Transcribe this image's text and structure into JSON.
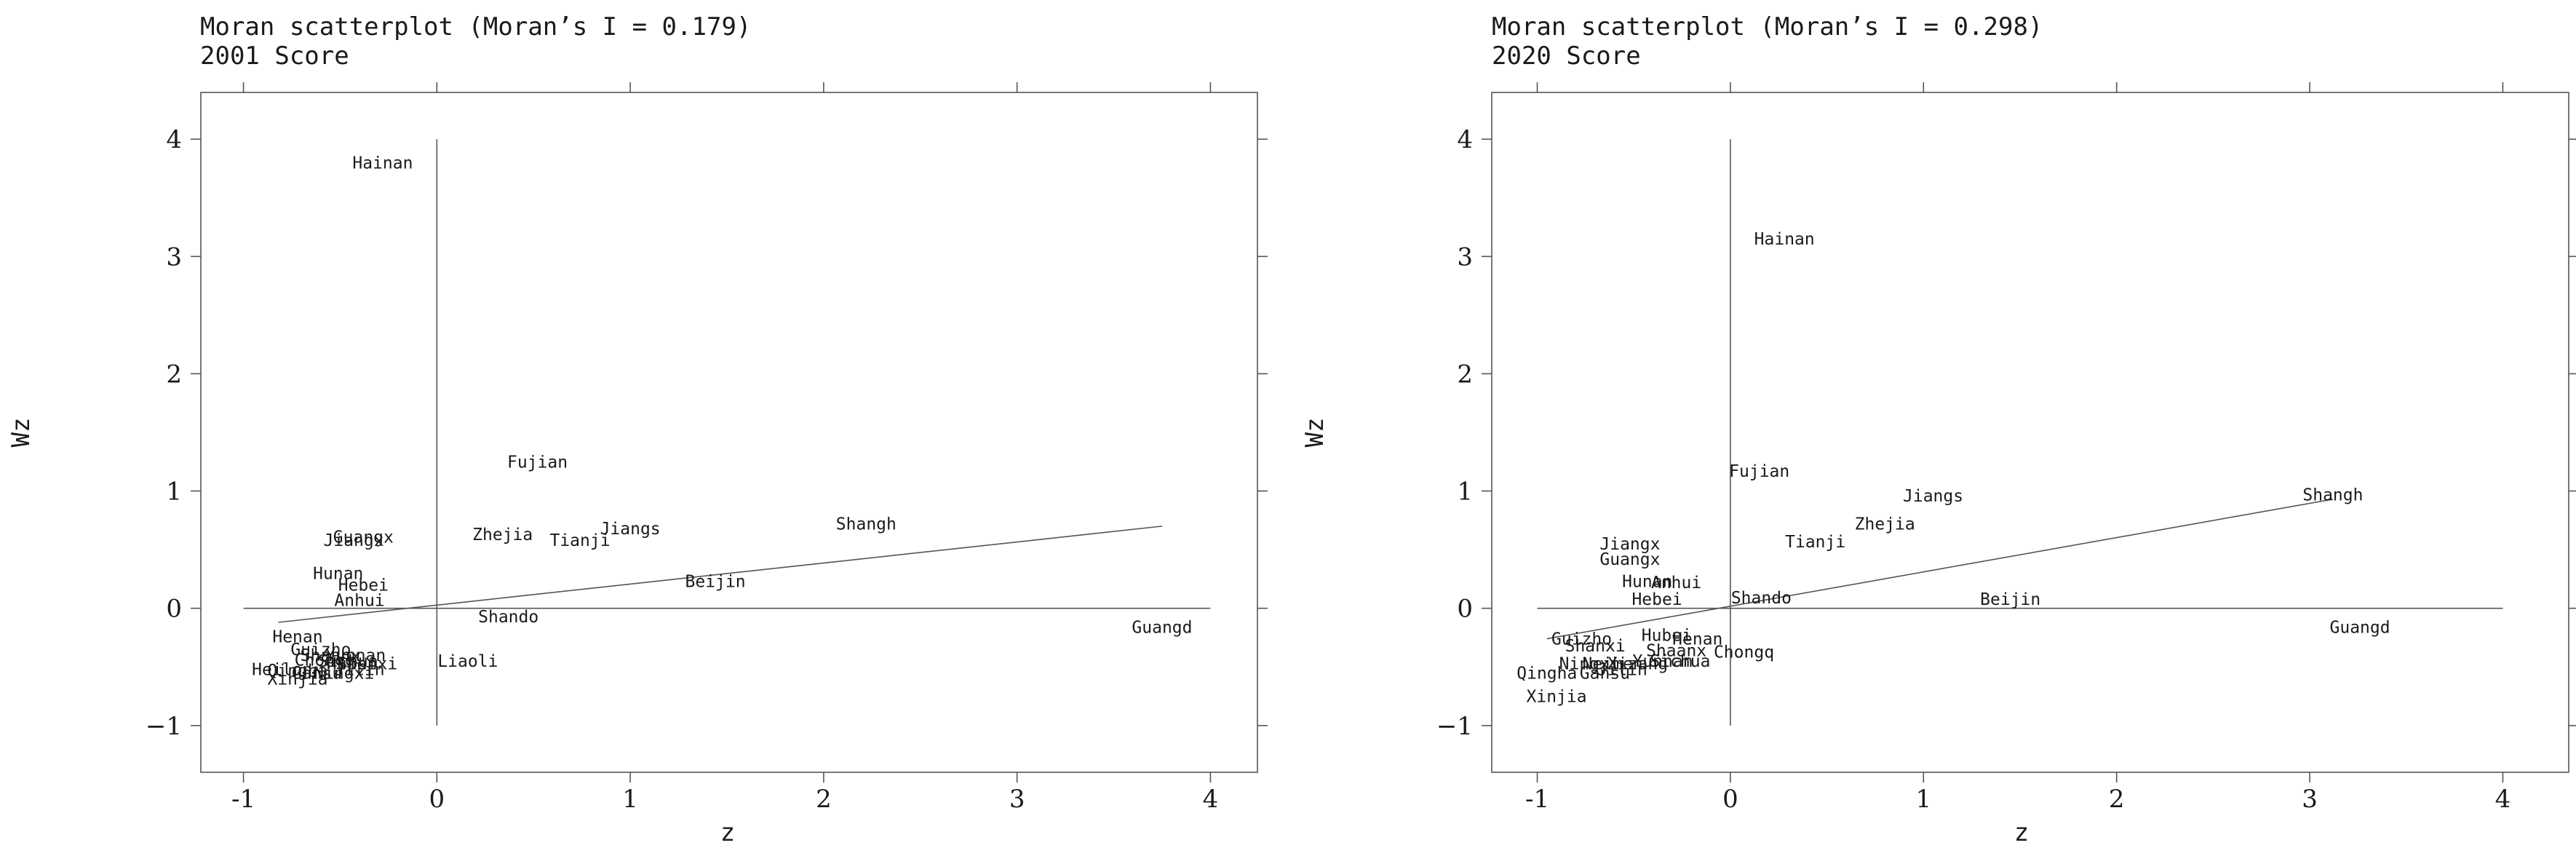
{
  "chart_data": [
    {
      "type": "scatter",
      "title": "Moran scatterplot (Moran’s I = 0.179)",
      "subtitle": "2001 Score",
      "xlabel": "z",
      "ylabel": "Wz",
      "xlim": [
        -1.1,
        4.1
      ],
      "ylim": [
        -1.2,
        4.2
      ],
      "xticks": [
        -1,
        0,
        1,
        2,
        3,
        4
      ],
      "yticks": [
        -1,
        0,
        1,
        2,
        3,
        4
      ],
      "fit_line": {
        "x": [
          -0.82,
          3.75
        ],
        "y": [
          -0.12,
          0.7
        ]
      },
      "points": [
        {
          "label": "Hainan",
          "x": -0.28,
          "y": 3.8
        },
        {
          "label": "Fujian",
          "x": 0.52,
          "y": 1.25
        },
        {
          "label": "Jiangs",
          "x": 1.0,
          "y": 0.68
        },
        {
          "label": "Zhejia",
          "x": 0.34,
          "y": 0.63
        },
        {
          "label": "Tianji",
          "x": 0.74,
          "y": 0.58
        },
        {
          "label": "Shangh",
          "x": 2.22,
          "y": 0.72
        },
        {
          "label": "Guangx",
          "x": -0.38,
          "y": 0.61
        },
        {
          "label": "Jiangx",
          "x": -0.43,
          "y": 0.58
        },
        {
          "label": "Hunan",
          "x": -0.51,
          "y": 0.3
        },
        {
          "label": "Hebei",
          "x": -0.38,
          "y": 0.2
        },
        {
          "label": "Anhui",
          "x": -0.4,
          "y": 0.07
        },
        {
          "label": "Beijin",
          "x": 1.44,
          "y": 0.23
        },
        {
          "label": "Shando",
          "x": 0.37,
          "y": -0.07
        },
        {
          "label": "Guangd",
          "x": 3.75,
          "y": -0.16
        },
        {
          "label": "Liaoli",
          "x": 0.16,
          "y": -0.45
        },
        {
          "label": "Henan",
          "x": -0.72,
          "y": -0.24
        },
        {
          "label": "Guizho",
          "x": -0.6,
          "y": -0.35
        },
        {
          "label": "Shaanx",
          "x": -0.55,
          "y": -0.4
        },
        {
          "label": "Yunnan",
          "x": -0.42,
          "y": -0.4
        },
        {
          "label": "Chongq",
          "x": -0.58,
          "y": -0.44
        },
        {
          "label": "Sichua",
          "x": -0.46,
          "y": -0.45
        },
        {
          "label": "Hubei",
          "x": -0.44,
          "y": -0.47
        },
        {
          "label": "Shanxi",
          "x": -0.36,
          "y": -0.47
        },
        {
          "label": "Heilon",
          "x": -0.8,
          "y": -0.52
        },
        {
          "label": "Qingha",
          "x": -0.72,
          "y": -0.53
        },
        {
          "label": "Gansu",
          "x": -0.62,
          "y": -0.55
        },
        {
          "label": "Ningxi",
          "x": -0.48,
          "y": -0.55
        },
        {
          "label": "Jilin",
          "x": -0.4,
          "y": -0.52
        },
        {
          "label": "Xinjia",
          "x": -0.72,
          "y": -0.6
        }
      ]
    },
    {
      "type": "scatter",
      "title": "Moran scatterplot (Moran’s I = 0.298)",
      "subtitle": "2020 Score",
      "xlabel": "z",
      "ylabel": "Wz",
      "xlim": [
        -1.1,
        4.1
      ],
      "ylim": [
        -1.2,
        4.2
      ],
      "xticks": [
        -1,
        0,
        1,
        2,
        3,
        4
      ],
      "yticks": [
        -1,
        0,
        1,
        2,
        3,
        4
      ],
      "fit_line": {
        "x": [
          -0.95,
          3.12
        ],
        "y": [
          -0.26,
          0.93
        ]
      },
      "points": [
        {
          "label": "Hainan",
          "x": 0.28,
          "y": 3.15
        },
        {
          "label": "Fujian",
          "x": 0.15,
          "y": 1.17
        },
        {
          "label": "Jiangs",
          "x": 1.05,
          "y": 0.96
        },
        {
          "label": "Shangh",
          "x": 3.12,
          "y": 0.97
        },
        {
          "label": "Zhejia",
          "x": 0.8,
          "y": 0.72
        },
        {
          "label": "Tianji",
          "x": 0.44,
          "y": 0.57
        },
        {
          "label": "Jiangx",
          "x": -0.52,
          "y": 0.55
        },
        {
          "label": "Guangx",
          "x": -0.52,
          "y": 0.42
        },
        {
          "label": "Hunan",
          "x": -0.43,
          "y": 0.23
        },
        {
          "label": "Anhui",
          "x": -0.28,
          "y": 0.22
        },
        {
          "label": "Hebei",
          "x": -0.38,
          "y": 0.08
        },
        {
          "label": "Shando",
          "x": 0.16,
          "y": 0.09
        },
        {
          "label": "Beijin",
          "x": 1.45,
          "y": 0.08
        },
        {
          "label": "Guangd",
          "x": 3.26,
          "y": -0.16
        },
        {
          "label": "Guizho",
          "x": -0.77,
          "y": -0.26
        },
        {
          "label": "Hubei",
          "x": -0.33,
          "y": -0.23
        },
        {
          "label": "Henan",
          "x": -0.17,
          "y": -0.26
        },
        {
          "label": "Shanxi",
          "x": -0.7,
          "y": -0.32
        },
        {
          "label": "Shaanx",
          "x": -0.28,
          "y": -0.36
        },
        {
          "label": "Chongq",
          "x": 0.07,
          "y": -0.37
        },
        {
          "label": "Ningxi",
          "x": -0.73,
          "y": -0.47
        },
        {
          "label": "Neimen",
          "x": -0.61,
          "y": -0.47
        },
        {
          "label": "Xizang",
          "x": -0.48,
          "y": -0.47
        },
        {
          "label": "Yunnan",
          "x": -0.35,
          "y": -0.45
        },
        {
          "label": "Sichua",
          "x": -0.26,
          "y": -0.45
        },
        {
          "label": "Jilin",
          "x": -0.56,
          "y": -0.52
        },
        {
          "label": "Gansu",
          "x": -0.65,
          "y": -0.55
        },
        {
          "label": "Qingha",
          "x": -0.95,
          "y": -0.55
        },
        {
          "label": "Xinjia",
          "x": -0.9,
          "y": -0.75
        }
      ]
    }
  ]
}
